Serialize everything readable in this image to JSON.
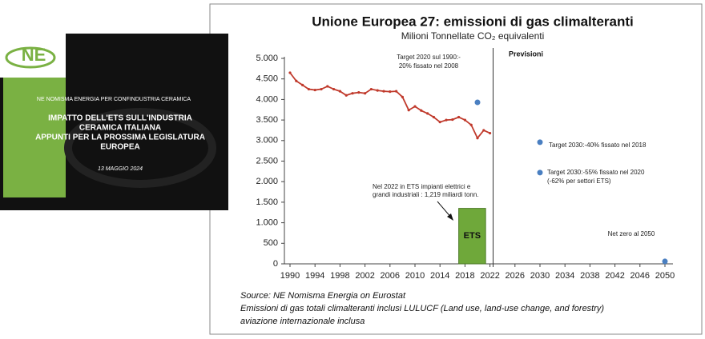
{
  "slide": {
    "logo": "NE",
    "header": "NE NOMISMA ENERGIA PER CONFINDUSTRIA CERAMICA",
    "title_lines": [
      "IMPATTO DELL'ETS SULL'INDUSTRIA",
      "CERAMICA ITALIANA",
      "APPUNTI PER LA PROSSIMA LEGISLATURA",
      "EUROPEA"
    ],
    "date": "13 MAGGIO 2024"
  },
  "chart_data": {
    "type": "line",
    "title": "Unione Europea 27: emissioni di gas climalteranti",
    "subtitle": "Milioni Tonnellate CO₂ equivalenti",
    "forecast_label": "Previsioni",
    "x": [
      1990,
      1991,
      1992,
      1993,
      1994,
      1995,
      1996,
      1997,
      1998,
      1999,
      2000,
      2001,
      2002,
      2003,
      2004,
      2005,
      2006,
      2007,
      2008,
      2009,
      2010,
      2011,
      2012,
      2013,
      2014,
      2015,
      2016,
      2017,
      2018,
      2019,
      2020,
      2021,
      2022
    ],
    "series": [
      {
        "name": "Emissioni",
        "color": "#c0392b",
        "values": [
          4650,
          4450,
          4350,
          4250,
          4230,
          4250,
          4320,
          4250,
          4200,
          4100,
          4150,
          4170,
          4150,
          4250,
          4220,
          4200,
          4190,
          4200,
          4060,
          3740,
          3830,
          3730,
          3660,
          3570,
          3450,
          3500,
          3510,
          3570,
          3500,
          3380,
          3060,
          3250,
          3180
        ]
      }
    ],
    "targets": {
      "x": [
        2020,
        2030,
        2030,
        2050
      ],
      "values": [
        3930,
        2960,
        2220,
        60
      ],
      "color": "#4a7fc1",
      "labels": [
        [
          "Target 2020 sul 1990:-",
          "20% fissato nel 2008"
        ],
        [
          "Target 2030:-40% fissato nel 2018"
        ],
        [
          "Target 2030:-55% fissato nel 2020",
          "(-62% per settori ETS)"
        ],
        [
          "Net zero al 2050"
        ]
      ]
    },
    "bar": {
      "label": "ETS",
      "x": [
        2017,
        2021.3
      ],
      "value": 1350,
      "color": "#6fa83a",
      "note": [
        "Nel 2022 in ETS impianti elettrici e",
        "grandi industriali : 1,219 miliardi tonn."
      ]
    },
    "xlim": [
      1990,
      2050
    ],
    "xticks": [
      1990,
      1994,
      1998,
      2002,
      2006,
      2010,
      2014,
      2018,
      2022,
      2026,
      2030,
      2034,
      2038,
      2042,
      2046,
      2050
    ],
    "ylim": [
      0,
      5000
    ],
    "yticks": [
      {
        "value": 0,
        "label": "0"
      },
      {
        "value": 500,
        "label": "500"
      },
      {
        "value": 1000,
        "label": "1.000"
      },
      {
        "value": 1500,
        "label": "1.500"
      },
      {
        "value": 2000,
        "label": "2.000"
      },
      {
        "value": 2500,
        "label": "2.500"
      },
      {
        "value": 3000,
        "label": "3.000"
      },
      {
        "value": 3500,
        "label": "3.500"
      },
      {
        "value": 4000,
        "label": "4.000"
      },
      {
        "value": 4500,
        "label": "4.500"
      },
      {
        "value": 5000,
        "label": "5.000"
      }
    ],
    "grid": false,
    "source": [
      "Source: NE Nomisma Energia on Eurostat",
      "Emissioni di gas totali climalteranti inclusi LULUCF (Land use, land-use change, and forestry)",
      "aviazione internazionale inclusa"
    ]
  }
}
